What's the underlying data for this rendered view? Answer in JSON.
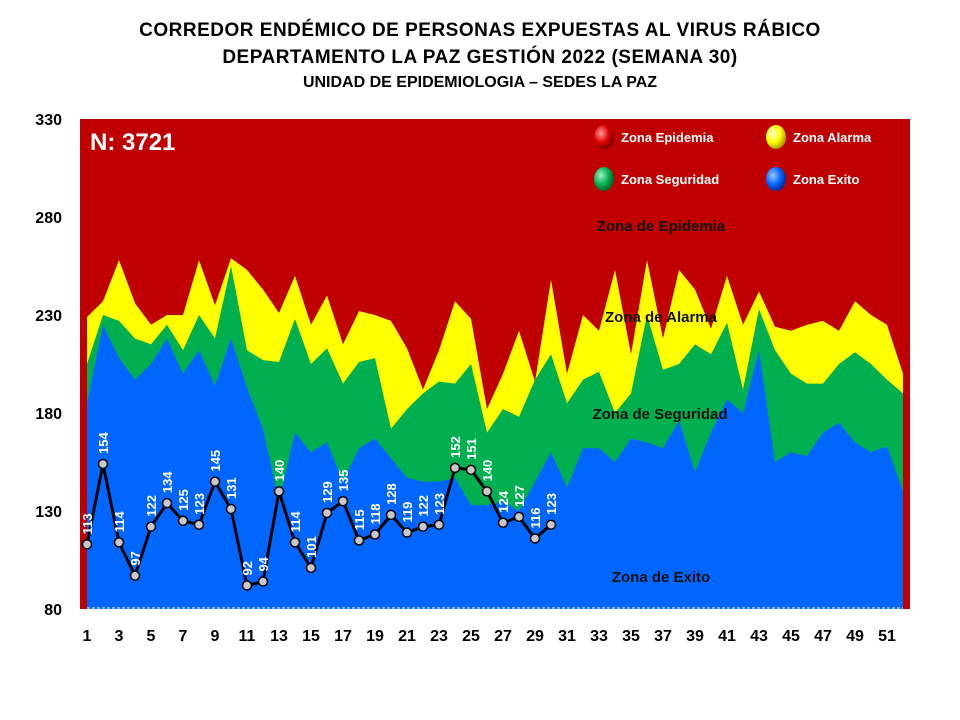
{
  "header": {
    "line1": "CORREDOR ENDÉMICO DE PERSONAS EXPUESTAS AL VIRUS RÁBICO",
    "line2": "DEPARTAMENTO  LA PAZ GESTIÓN 2022 (SEMANA 30)",
    "line3": "UNIDAD DE EPIDEMIOLOGIA – SEDES LA PAZ"
  },
  "chart_data": {
    "type": "area",
    "n_label": "N: 3721",
    "ylim": [
      80,
      330
    ],
    "yticks": [
      80,
      130,
      180,
      230,
      280,
      330
    ],
    "xlim": [
      1,
      52
    ],
    "xticks": [
      1,
      3,
      5,
      7,
      9,
      11,
      13,
      15,
      17,
      19,
      21,
      23,
      25,
      27,
      29,
      31,
      33,
      35,
      37,
      39,
      41,
      43,
      45,
      47,
      49,
      51
    ],
    "colors": {
      "epidemia": "#c00000",
      "alarma": "#ffff00",
      "seguridad": "#00b050",
      "exito": "#0066ff",
      "line": "#000000",
      "marker": "#c8c8c8"
    },
    "legend": [
      {
        "label": "Zona Epidemia",
        "color": "#e00000"
      },
      {
        "label": "Zona Alarma",
        "color": "#ffff00"
      },
      {
        "label": "Zona Seguridad",
        "color": "#00b050"
      },
      {
        "label": "Zona Exito",
        "color": "#0066ff"
      }
    ],
    "zone_labels": {
      "epidemia": "Zona de Epidemia",
      "alarma": "Zona de Alarma",
      "seguridad": "Zona de Seguridad",
      "exito": "Zona de Exito"
    },
    "weeks": [
      1,
      2,
      3,
      4,
      5,
      6,
      7,
      8,
      9,
      10,
      11,
      12,
      13,
      14,
      15,
      16,
      17,
      18,
      19,
      20,
      21,
      22,
      23,
      24,
      25,
      26,
      27,
      28,
      29,
      30,
      31,
      32,
      33,
      34,
      35,
      36,
      37,
      38,
      39,
      40,
      41,
      42,
      43,
      44,
      45,
      46,
      47,
      48,
      49,
      50,
      51,
      52
    ],
    "series": [
      {
        "name": "Zona Exito",
        "values": [
          185,
          225,
          208,
          197,
          205,
          218,
          200,
          212,
          194,
          218,
          193,
          172,
          135,
          170,
          160,
          165,
          145,
          162,
          167,
          157,
          147,
          145,
          145,
          147,
          133,
          133,
          135,
          130,
          145,
          160,
          142,
          162,
          162,
          155,
          167,
          165,
          162,
          176,
          150,
          170,
          187,
          180,
          212,
          155,
          160,
          158,
          170,
          175,
          165,
          160,
          163,
          140
        ]
      },
      {
        "name": "Zona Seguridad",
        "values": [
          205,
          230,
          227,
          218,
          215,
          225,
          212,
          230,
          218,
          255,
          212,
          207,
          206,
          228,
          205,
          213,
          195,
          206,
          208,
          172,
          182,
          190,
          196,
          195,
          205,
          170,
          182,
          178,
          197,
          210,
          185,
          197,
          201,
          180,
          190,
          230,
          202,
          205,
          215,
          210,
          226,
          192,
          233,
          212,
          200,
          195,
          195,
          205,
          211,
          205,
          197,
          190
        ]
      },
      {
        "name": "Zona Alarma",
        "values": [
          229,
          237,
          258,
          236,
          225,
          230,
          230,
          258,
          235,
          259,
          253,
          243,
          231,
          250,
          225,
          240,
          215,
          232,
          230,
          227,
          213,
          192,
          212,
          237,
          228,
          182,
          200,
          222,
          196,
          248,
          200,
          230,
          222,
          253,
          210,
          258,
          218,
          253,
          243,
          223,
          250,
          225,
          242,
          224,
          222,
          225,
          227,
          222,
          237,
          230,
          225,
          200
        ]
      },
      {
        "name": "2022",
        "values": [
          113,
          154,
          114,
          97,
          122,
          134,
          125,
          123,
          145,
          131,
          92,
          94,
          140,
          114,
          101,
          129,
          135,
          115,
          118,
          128,
          119,
          122,
          123,
          152,
          151,
          140,
          124,
          127,
          116,
          123
        ]
      }
    ]
  }
}
